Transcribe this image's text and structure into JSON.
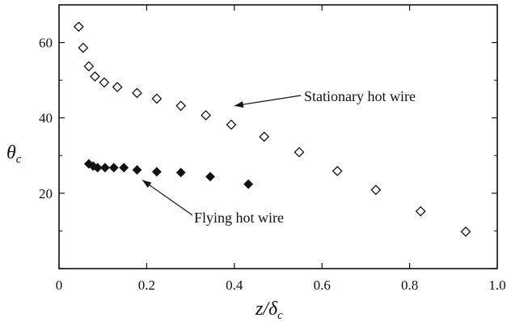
{
  "chart_data": {
    "type": "scatter",
    "xlabel": "z/δ",
    "xlabel_sub": "c",
    "ylabel": "θ",
    "ylabel_sub": "c",
    "xlim": [
      0,
      1.0
    ],
    "ylim": [
      0,
      70
    ],
    "x_ticks": [
      0,
      0.2,
      0.4,
      0.6,
      0.8,
      1.0
    ],
    "x_tick_labels": [
      "0",
      "0.2",
      "0.4",
      "0.6",
      "0.8",
      "1.0"
    ],
    "y_ticks": [
      0,
      20,
      40,
      60
    ],
    "y_tick_labels": [
      "",
      "20",
      "40",
      "60"
    ],
    "grid": false,
    "series": [
      {
        "name": "Stationary hot wire",
        "marker": "open-diamond",
        "x": [
          0.045,
          0.055,
          0.068,
          0.082,
          0.103,
          0.133,
          0.178,
          0.223,
          0.278,
          0.335,
          0.393,
          0.468,
          0.548,
          0.635,
          0.723,
          0.825,
          0.928
        ],
        "y": [
          64.2,
          58.6,
          53.7,
          51.0,
          49.4,
          48.2,
          46.6,
          45.1,
          43.2,
          40.7,
          38.2,
          35.0,
          30.9,
          25.9,
          20.9,
          15.2,
          9.8
        ]
      },
      {
        "name": "Flying hot wire",
        "marker": "filled-diamond",
        "x": [
          0.068,
          0.078,
          0.088,
          0.105,
          0.125,
          0.148,
          0.178,
          0.223,
          0.278,
          0.345,
          0.432
        ],
        "y": [
          27.8,
          27.2,
          26.8,
          26.8,
          26.8,
          26.8,
          26.2,
          25.7,
          25.5,
          24.4,
          22.4
        ]
      }
    ],
    "annotations": [
      {
        "text": "Stationary hot wire",
        "points_to_series": 0,
        "arrow_target_x": 0.4,
        "arrow_target_y": 43.2
      },
      {
        "text": "Flying hot wire",
        "points_to_series": 1,
        "arrow_target_x": 0.19,
        "arrow_target_y": 23.5
      }
    ]
  }
}
